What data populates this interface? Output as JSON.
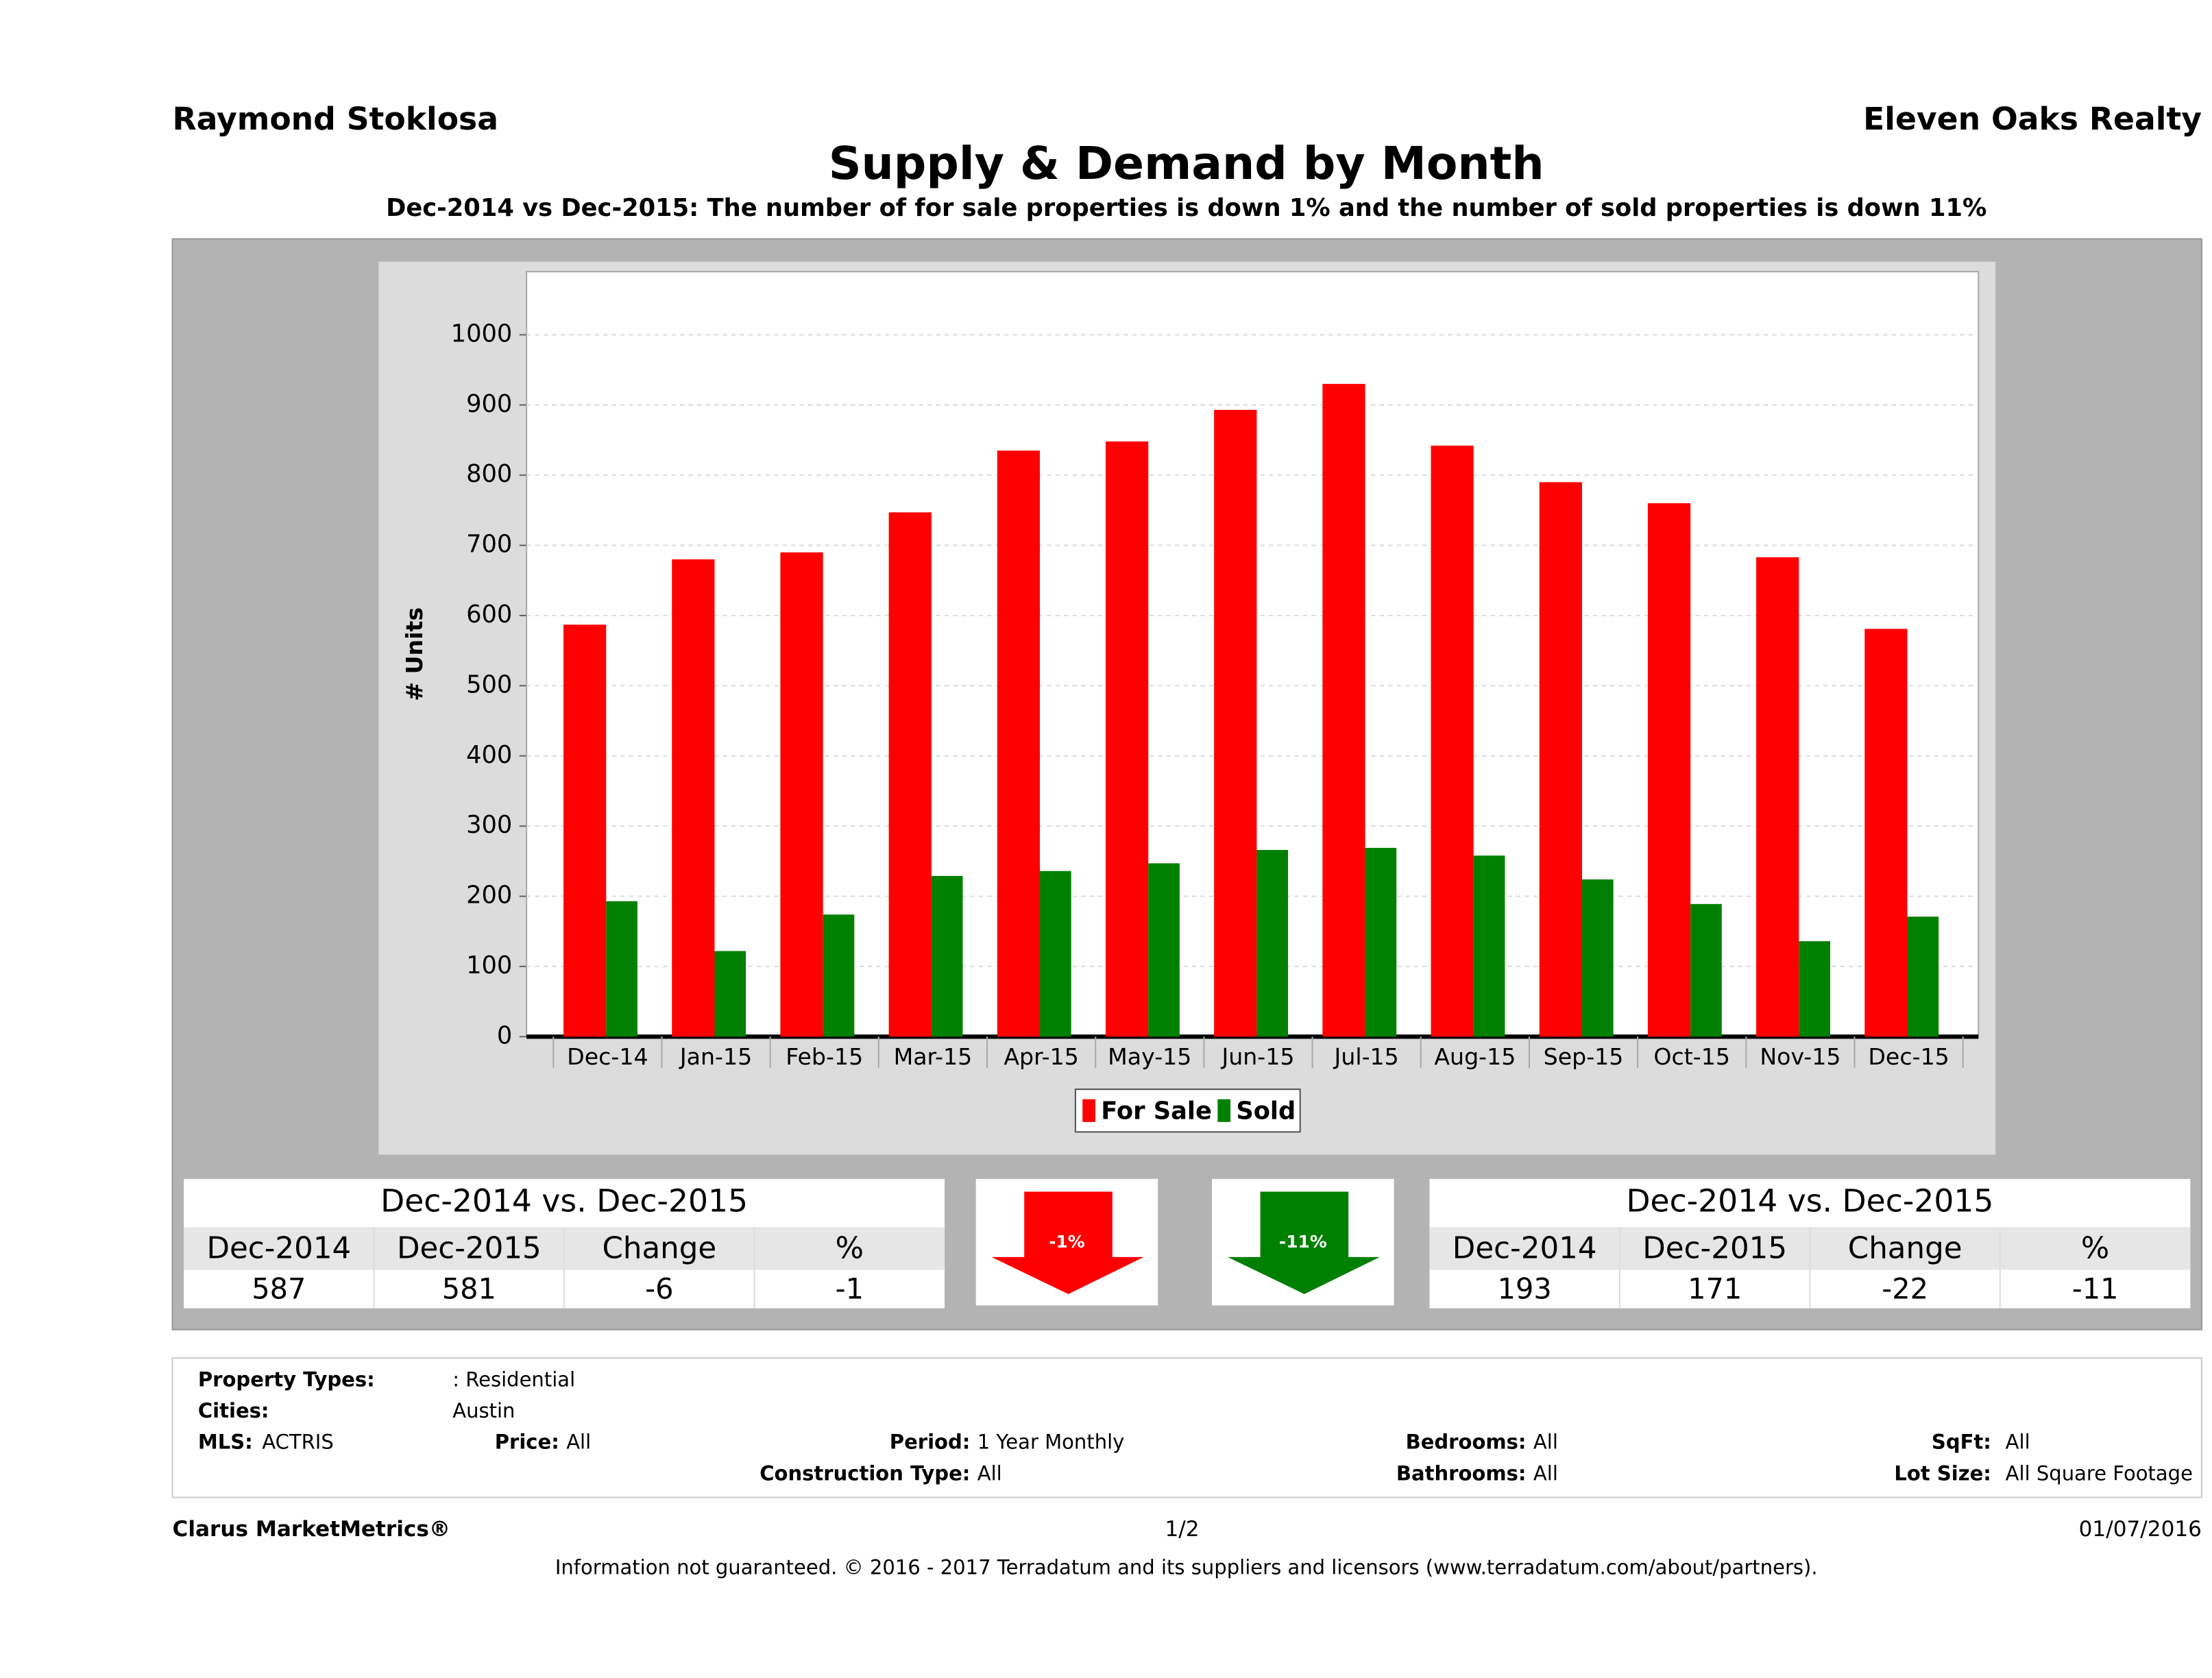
{
  "header": {
    "agent": "Raymond Stoklosa",
    "company": "Eleven Oaks Realty"
  },
  "chart_data": {
    "type": "bar",
    "title": "Supply & Demand by Month",
    "subtitle": "Dec-2014 vs Dec-2015: The number of for sale properties is down 1% and the number of sold properties is down 11%",
    "y_label": "# Units",
    "categories": [
      "Dec-14",
      "Jan-15",
      "Feb-15",
      "Mar-15",
      "Apr-15",
      "May-15",
      "Jun-15",
      "Jul-15",
      "Aug-15",
      "Sep-15",
      "Oct-15",
      "Nov-15",
      "Dec-15"
    ],
    "series": [
      {
        "name": "For Sale",
        "color": "#ff0000",
        "values": [
          587,
          680,
          690,
          747,
          835,
          848,
          893,
          930,
          842,
          790,
          760,
          683,
          581
        ]
      },
      {
        "name": "Sold",
        "color": "#008000",
        "values": [
          193,
          122,
          174,
          229,
          236,
          247,
          266,
          269,
          258,
          224,
          189,
          136,
          171
        ]
      }
    ],
    "ylim": [
      0,
      1090
    ],
    "yticks": [
      0,
      100,
      200,
      300,
      400,
      500,
      600,
      700,
      800,
      900,
      1000
    ],
    "grid": true,
    "legend": "bottom"
  },
  "summary": {
    "for_sale": {
      "title": "Dec-2014 vs. Dec-2015",
      "columns": [
        "Dec-2014",
        "Dec-2015",
        "Change",
        "%"
      ],
      "values": [
        587,
        581,
        -6,
        -1
      ]
    },
    "arrow_for_sale": "-1%",
    "arrow_sold": "-11%",
    "sold": {
      "title": "Dec-2014 vs. Dec-2015",
      "columns": [
        "Dec-2014",
        "Dec-2015",
        "Change",
        "%"
      ],
      "values": [
        193,
        171,
        -22,
        -11
      ]
    }
  },
  "criteria": [
    {
      "label": "Property Types:",
      "value": ": Residential"
    },
    {
      "label": "Cities:",
      "value": "Austin"
    },
    {
      "label": "MLS:",
      "value": "ACTRIS"
    },
    {
      "label": "Price:",
      "value": "All"
    },
    {
      "label": "Period:",
      "value": "1 Year Monthly"
    },
    {
      "label": "Bedrooms:",
      "value": "All"
    },
    {
      "label": "SqFt:",
      "value": "All"
    },
    {
      "label": "Construction Type:",
      "value": "All"
    },
    {
      "label": "Bathrooms:",
      "value": "All"
    },
    {
      "label": "Lot Size:",
      "value": "All Square Footage"
    }
  ],
  "footer": {
    "brand": "Clarus MarketMetrics®",
    "page": "1/2",
    "date": "01/07/2016",
    "disclaimer": "Information not guaranteed. © 2016 - 2017 Terradatum and its suppliers and licensors (www.terradatum.com/about/partners)."
  }
}
